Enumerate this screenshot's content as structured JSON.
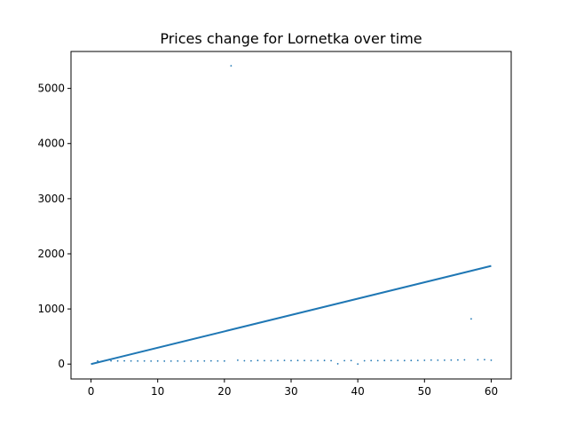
{
  "chart_data": {
    "type": "scatter",
    "title": "Prices change for Lornetka over time",
    "xlabel": "",
    "ylabel": "",
    "xlim": [
      -3,
      63
    ],
    "ylim": [
      -270,
      5670
    ],
    "xticks": [
      0,
      10,
      20,
      30,
      40,
      50,
      60
    ],
    "yticks": [
      0,
      1000,
      2000,
      3000,
      4000,
      5000
    ],
    "grid": false,
    "legend": "none",
    "colors": {
      "series": "#1f77b4",
      "axes": "#000000",
      "background": "#ffffff"
    },
    "series": [
      {
        "kind": "scatter",
        "points": [
          [
            1,
            55
          ],
          [
            2,
            60
          ],
          [
            3,
            58
          ],
          [
            4,
            57
          ],
          [
            5,
            58
          ],
          [
            6,
            56
          ],
          [
            7,
            55
          ],
          [
            8,
            56
          ],
          [
            9,
            54
          ],
          [
            10,
            55
          ],
          [
            11,
            53
          ],
          [
            12,
            54
          ],
          [
            13,
            55
          ],
          [
            14,
            52
          ],
          [
            15,
            54
          ],
          [
            16,
            55
          ],
          [
            17,
            56
          ],
          [
            18,
            58
          ],
          [
            19,
            56
          ],
          [
            20,
            55
          ],
          [
            21,
            5410
          ],
          [
            22,
            70
          ],
          [
            23,
            60
          ],
          [
            24,
            58
          ],
          [
            25,
            65
          ],
          [
            26,
            62
          ],
          [
            27,
            60
          ],
          [
            28,
            64
          ],
          [
            29,
            66
          ],
          [
            30,
            62
          ],
          [
            31,
            65
          ],
          [
            32,
            64
          ],
          [
            33,
            62
          ],
          [
            34,
            63
          ],
          [
            35,
            65
          ],
          [
            36,
            62
          ],
          [
            37,
            5
          ],
          [
            38,
            62
          ],
          [
            39,
            64
          ],
          [
            40,
            2
          ],
          [
            41,
            60
          ],
          [
            42,
            63
          ],
          [
            43,
            62
          ],
          [
            44,
            65
          ],
          [
            45,
            64
          ],
          [
            46,
            66
          ],
          [
            47,
            63
          ],
          [
            48,
            65
          ],
          [
            49,
            66
          ],
          [
            50,
            68
          ],
          [
            51,
            72
          ],
          [
            52,
            70
          ],
          [
            53,
            70
          ],
          [
            54,
            72
          ],
          [
            55,
            74
          ],
          [
            56,
            76
          ],
          [
            57,
            820
          ],
          [
            58,
            78
          ],
          [
            59,
            80
          ],
          [
            60,
            70
          ]
        ]
      },
      {
        "kind": "line",
        "points": [
          [
            0,
            0
          ],
          [
            60,
            1780
          ]
        ]
      }
    ]
  }
}
